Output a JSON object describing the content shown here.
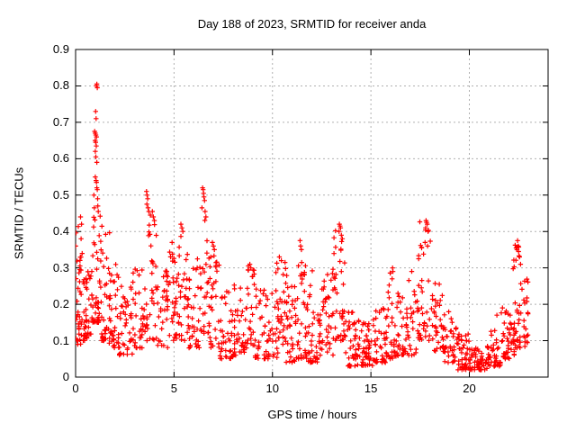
{
  "window": {
    "background": "#ffffff"
  },
  "colors": {
    "marker": "#ff0000",
    "grid": "#b0b0b0",
    "border": "#000000",
    "text": "#000000"
  },
  "chart_data": {
    "type": "scatter",
    "title": "Day 188 of 2023, SRMTID for receiver anda",
    "xlabel": "GPS time / hours",
    "ylabel": "SRMTID / TECUs",
    "xlim": [
      0,
      24
    ],
    "ylim": [
      0,
      0.9
    ],
    "xticks": [
      0,
      5,
      10,
      15,
      20
    ],
    "xtick_labels": [
      "0",
      "5",
      "10",
      "15",
      "20"
    ],
    "yticks": [
      0,
      0.1,
      0.2,
      0.3,
      0.4,
      0.5,
      0.6,
      0.7,
      0.8,
      0.9
    ],
    "ytick_labels": [
      "0",
      "0.1",
      "0.2",
      "0.3",
      "0.4",
      "0.5",
      "0.6",
      "0.7",
      "0.8",
      "0.9"
    ],
    "grid": true,
    "legend": "none",
    "series": [
      {
        "name": "SRMTID",
        "marker": "plus",
        "color": "#ff0000"
      }
    ],
    "x_data_range": [
      0.03,
      23.1
    ],
    "salient_points": [
      [
        0.25,
        0.44
      ],
      [
        0.3,
        0.42
      ],
      [
        0.93,
        0.5
      ],
      [
        0.95,
        0.465
      ],
      [
        0.97,
        0.675
      ],
      [
        0.99,
        0.65
      ],
      [
        1.0,
        0.67
      ],
      [
        1.0,
        0.62
      ],
      [
        1.0,
        0.55
      ],
      [
        1.02,
        0.73
      ],
      [
        1.02,
        0.645
      ],
      [
        1.03,
        0.665
      ],
      [
        1.03,
        0.605
      ],
      [
        1.04,
        0.71
      ],
      [
        1.04,
        0.54
      ],
      [
        1.05,
        0.8
      ],
      [
        1.05,
        0.635
      ],
      [
        1.06,
        0.66
      ],
      [
        1.06,
        0.535
      ],
      [
        1.08,
        0.805
      ],
      [
        1.08,
        0.59
      ],
      [
        1.08,
        0.52
      ],
      [
        1.1,
        0.795
      ],
      [
        1.1,
        0.515
      ],
      [
        1.12,
        0.49
      ],
      [
        1.13,
        0.47
      ],
      [
        1.15,
        0.455
      ],
      [
        3.6,
        0.51
      ],
      [
        3.63,
        0.5
      ],
      [
        3.66,
        0.49
      ],
      [
        3.62,
        0.475
      ],
      [
        3.68,
        0.465
      ],
      [
        3.72,
        0.455
      ],
      [
        3.8,
        0.445
      ],
      [
        3.9,
        0.455
      ],
      [
        3.95,
        0.44
      ],
      [
        4.0,
        0.43
      ],
      [
        4.9,
        0.37
      ],
      [
        5.35,
        0.42
      ],
      [
        5.4,
        0.41
      ],
      [
        5.45,
        0.4
      ],
      [
        6.42,
        0.465
      ],
      [
        6.45,
        0.52
      ],
      [
        6.48,
        0.515
      ],
      [
        6.5,
        0.505
      ],
      [
        6.52,
        0.495
      ],
      [
        6.55,
        0.485
      ],
      [
        6.58,
        0.455
      ],
      [
        6.62,
        0.44
      ],
      [
        6.95,
        0.37
      ],
      [
        7.0,
        0.36
      ],
      [
        7.05,
        0.35
      ],
      [
        8.85,
        0.31
      ],
      [
        8.9,
        0.3
      ],
      [
        10.35,
        0.33
      ],
      [
        10.45,
        0.32
      ],
      [
        11.4,
        0.375
      ],
      [
        11.43,
        0.36
      ],
      [
        11.47,
        0.35
      ],
      [
        13.38,
        0.4
      ],
      [
        13.4,
        0.42
      ],
      [
        13.43,
        0.415
      ],
      [
        13.46,
        0.41
      ],
      [
        13.5,
        0.39
      ],
      [
        13.55,
        0.38
      ],
      [
        16.08,
        0.27
      ],
      [
        16.1,
        0.3
      ],
      [
        16.12,
        0.29
      ],
      [
        17.75,
        0.37
      ],
      [
        17.78,
        0.41
      ],
      [
        17.8,
        0.43
      ],
      [
        17.83,
        0.425
      ],
      [
        17.86,
        0.42
      ],
      [
        17.88,
        0.36
      ],
      [
        17.9,
        0.4
      ],
      [
        21.4,
        0.17
      ],
      [
        22.42,
        0.35
      ],
      [
        22.45,
        0.375
      ],
      [
        22.48,
        0.36
      ],
      [
        22.5,
        0.345
      ],
      [
        22.55,
        0.33
      ],
      [
        22.6,
        0.31
      ]
    ],
    "density_clusters": [
      {
        "x0": 0.0,
        "x1": 0.3,
        "ymin": 0.09,
        "ymax": 0.44,
        "n": 28
      },
      {
        "x0": 0.1,
        "x1": 0.6,
        "ymin": 0.1,
        "ymax": 0.34,
        "n": 30
      },
      {
        "x0": 0.5,
        "x1": 0.9,
        "ymin": 0.11,
        "ymax": 0.3,
        "n": 25
      },
      {
        "x0": 0.85,
        "x1": 1.3,
        "ymin": 0.15,
        "ymax": 0.45,
        "n": 42
      },
      {
        "x0": 1.25,
        "x1": 1.75,
        "ymin": 0.1,
        "ymax": 0.42,
        "n": 32
      },
      {
        "x0": 1.7,
        "x1": 2.2,
        "ymin": 0.08,
        "ymax": 0.31,
        "n": 36
      },
      {
        "x0": 2.2,
        "x1": 2.9,
        "ymin": 0.06,
        "ymax": 0.26,
        "n": 38
      },
      {
        "x0": 2.9,
        "x1": 3.5,
        "ymin": 0.08,
        "ymax": 0.31,
        "n": 34
      },
      {
        "x0": 3.5,
        "x1": 4.1,
        "ymin": 0.1,
        "ymax": 0.42,
        "n": 34
      },
      {
        "x0": 4.1,
        "x1": 4.7,
        "ymin": 0.08,
        "ymax": 0.3,
        "n": 34
      },
      {
        "x0": 4.7,
        "x1": 5.2,
        "ymin": 0.1,
        "ymax": 0.35,
        "n": 28
      },
      {
        "x0": 5.2,
        "x1": 5.7,
        "ymin": 0.1,
        "ymax": 0.39,
        "n": 28
      },
      {
        "x0": 5.7,
        "x1": 6.3,
        "ymin": 0.08,
        "ymax": 0.33,
        "n": 34
      },
      {
        "x0": 6.3,
        "x1": 6.8,
        "ymin": 0.12,
        "ymax": 0.44,
        "n": 30
      },
      {
        "x0": 6.8,
        "x1": 7.3,
        "ymin": 0.08,
        "ymax": 0.34,
        "n": 30
      },
      {
        "x0": 7.3,
        "x1": 8.0,
        "ymin": 0.05,
        "ymax": 0.24,
        "n": 38
      },
      {
        "x0": 8.0,
        "x1": 8.6,
        "ymin": 0.06,
        "ymax": 0.26,
        "n": 34
      },
      {
        "x0": 8.6,
        "x1": 9.1,
        "ymin": 0.08,
        "ymax": 0.31,
        "n": 30
      },
      {
        "x0": 9.1,
        "x1": 9.9,
        "ymin": 0.05,
        "ymax": 0.25,
        "n": 42
      },
      {
        "x0": 9.9,
        "x1": 10.7,
        "ymin": 0.05,
        "ymax": 0.32,
        "n": 44
      },
      {
        "x0": 10.7,
        "x1": 11.3,
        "ymin": 0.04,
        "ymax": 0.28,
        "n": 38
      },
      {
        "x0": 11.3,
        "x1": 11.8,
        "ymin": 0.05,
        "ymax": 0.36,
        "n": 34
      },
      {
        "x0": 11.8,
        "x1": 12.4,
        "ymin": 0.04,
        "ymax": 0.3,
        "n": 38
      },
      {
        "x0": 12.4,
        "x1": 13.1,
        "ymin": 0.06,
        "ymax": 0.3,
        "n": 44
      },
      {
        "x0": 13.1,
        "x1": 13.7,
        "ymin": 0.1,
        "ymax": 0.41,
        "n": 38
      },
      {
        "x0": 13.7,
        "x1": 14.4,
        "ymin": 0.03,
        "ymax": 0.18,
        "n": 44
      },
      {
        "x0": 14.4,
        "x1": 15.1,
        "ymin": 0.03,
        "ymax": 0.15,
        "n": 48
      },
      {
        "x0": 15.1,
        "x1": 15.8,
        "ymin": 0.04,
        "ymax": 0.19,
        "n": 44
      },
      {
        "x0": 15.8,
        "x1": 16.4,
        "ymin": 0.05,
        "ymax": 0.3,
        "n": 38
      },
      {
        "x0": 16.4,
        "x1": 17.3,
        "ymin": 0.06,
        "ymax": 0.3,
        "n": 48
      },
      {
        "x0": 17.3,
        "x1": 18.1,
        "ymin": 0.1,
        "ymax": 0.43,
        "n": 44
      },
      {
        "x0": 18.1,
        "x1": 18.7,
        "ymin": 0.07,
        "ymax": 0.26,
        "n": 34
      },
      {
        "x0": 18.7,
        "x1": 19.4,
        "ymin": 0.04,
        "ymax": 0.18,
        "n": 36
      },
      {
        "x0": 19.4,
        "x1": 20.0,
        "ymin": 0.02,
        "ymax": 0.12,
        "n": 44
      },
      {
        "x0": 20.0,
        "x1": 20.9,
        "ymin": 0.02,
        "ymax": 0.08,
        "n": 52
      },
      {
        "x0": 20.9,
        "x1": 21.6,
        "ymin": 0.03,
        "ymax": 0.13,
        "n": 42
      },
      {
        "x0": 21.6,
        "x1": 22.3,
        "ymin": 0.05,
        "ymax": 0.2,
        "n": 44
      },
      {
        "x0": 22.2,
        "x1": 22.6,
        "ymin": 0.08,
        "ymax": 0.37,
        "n": 30
      },
      {
        "x0": 22.5,
        "x1": 23.0,
        "ymin": 0.08,
        "ymax": 0.3,
        "n": 26
      }
    ],
    "random_seed": 188
  }
}
